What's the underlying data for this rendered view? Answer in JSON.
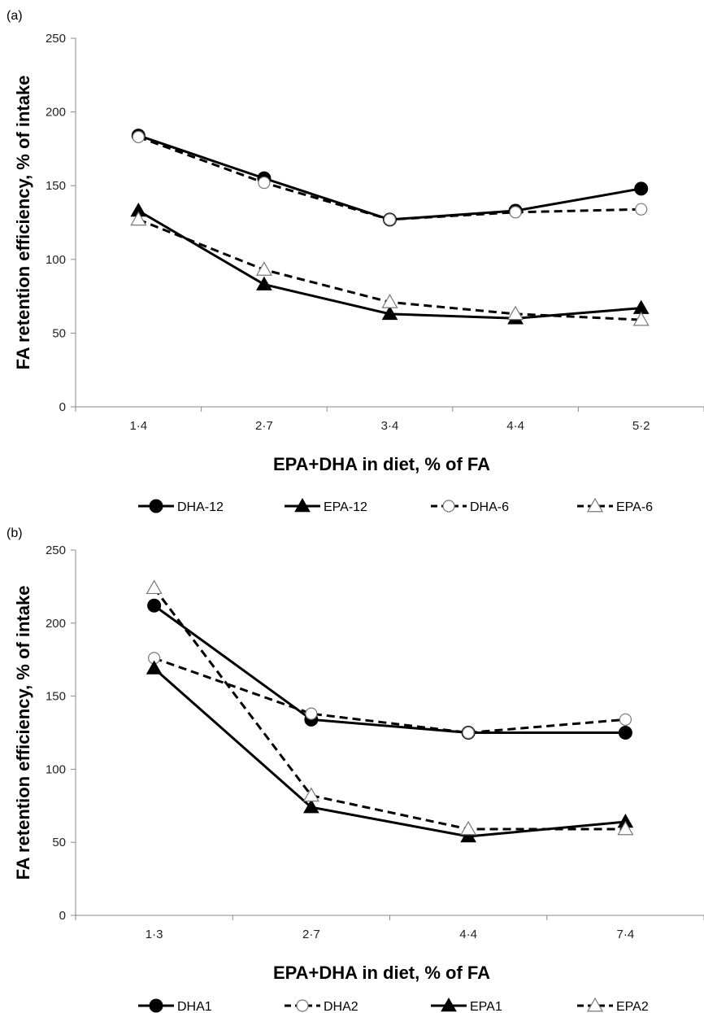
{
  "chart_data": [
    {
      "type": "line",
      "panel_label": "(a)",
      "categories": [
        "1·4",
        "2·7",
        "3·4",
        "4·4",
        "5·2"
      ],
      "xlabel": "EPA+DHA in diet, % of FA",
      "ylabel": "FA retention efficiency, % of intake",
      "ylim": [
        0,
        250
      ],
      "yticks": [
        "0",
        "50",
        "100",
        "150",
        "200",
        "250"
      ],
      "grid": false,
      "legend_position": "bottom",
      "series": [
        {
          "name": "DHA-12",
          "values": [
            184,
            155,
            127,
            133,
            148
          ],
          "marker": "circle-filled",
          "dash": false
        },
        {
          "name": "EPA-12",
          "values": [
            133,
            83,
            63,
            60,
            67
          ],
          "marker": "triangle-filled",
          "dash": false
        },
        {
          "name": "DHA-6",
          "values": [
            183,
            152,
            127,
            132,
            134
          ],
          "marker": "circle-open",
          "dash": true
        },
        {
          "name": "EPA-6",
          "values": [
            127,
            93,
            71,
            63,
            59
          ],
          "marker": "triangle-open",
          "dash": true
        }
      ]
    },
    {
      "type": "line",
      "panel_label": "(b)",
      "categories": [
        "1·3",
        "2·7",
        "4·4",
        "7·4"
      ],
      "xlabel": "EPA+DHA in diet, % of FA",
      "ylabel": "FA retention efficiency, % of intake",
      "ylim": [
        0,
        250
      ],
      "yticks": [
        "0",
        "50",
        "100",
        "150",
        "200",
        "250"
      ],
      "grid": false,
      "legend_position": "bottom",
      "series": [
        {
          "name": "DHA1",
          "values": [
            212,
            134,
            125,
            125
          ],
          "marker": "circle-filled",
          "dash": false
        },
        {
          "name": "DHA2",
          "values": [
            176,
            138,
            125,
            134
          ],
          "marker": "circle-open",
          "dash": true
        },
        {
          "name": "EPA1",
          "values": [
            169,
            74,
            54,
            64
          ],
          "marker": "triangle-filled",
          "dash": false
        },
        {
          "name": "EPA2",
          "values": [
            224,
            82,
            59,
            59
          ],
          "marker": "triangle-open",
          "dash": true
        }
      ]
    }
  ]
}
